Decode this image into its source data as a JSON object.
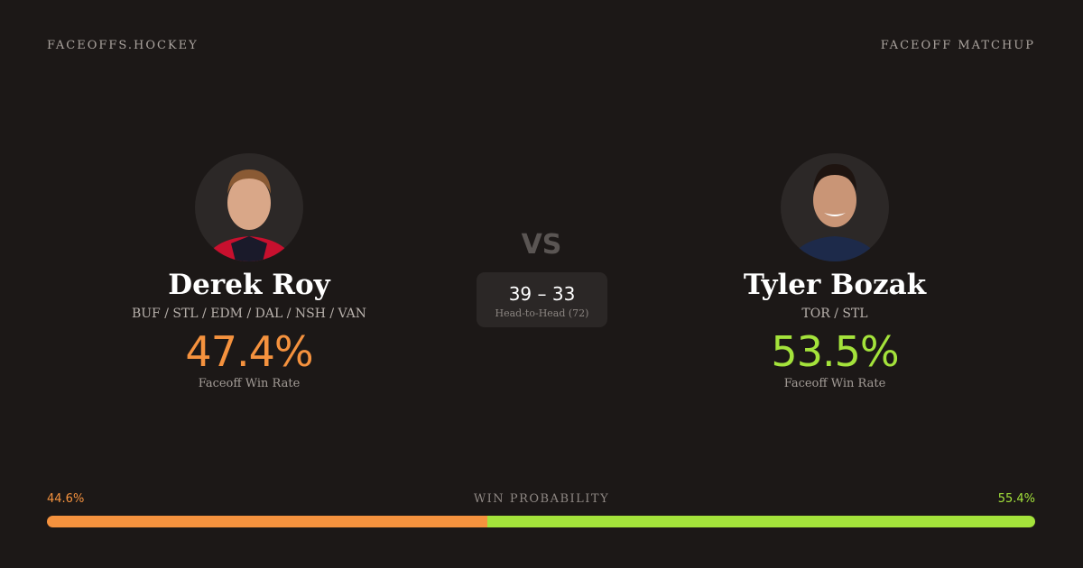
{
  "header": {
    "brand": "FACEOFFS.HOCKEY",
    "label": "FACEOFF MATCHUP"
  },
  "players": [
    {
      "name": "Derek Roy",
      "teams": "BUF / STL / EDM / DAL / NSH / VAN",
      "rate": "47.4%",
      "rate_label": "Faceoff Win Rate",
      "color": "#f5923e"
    },
    {
      "name": "Tyler Bozak",
      "teams": "TOR / STL",
      "rate": "53.5%",
      "rate_label": "Faceoff Win Rate",
      "color": "#a4e33b"
    }
  ],
  "versus": "VS",
  "head_to_head": {
    "score": "39 – 33",
    "label": "Head-to-Head (72)"
  },
  "win_probability": {
    "label": "WIN PROBABILITY",
    "values": [
      44.6,
      55.4
    ],
    "value_labels": [
      "44.6%",
      "55.4%"
    ],
    "colors": [
      "#f5923e",
      "#a4e33b"
    ]
  }
}
